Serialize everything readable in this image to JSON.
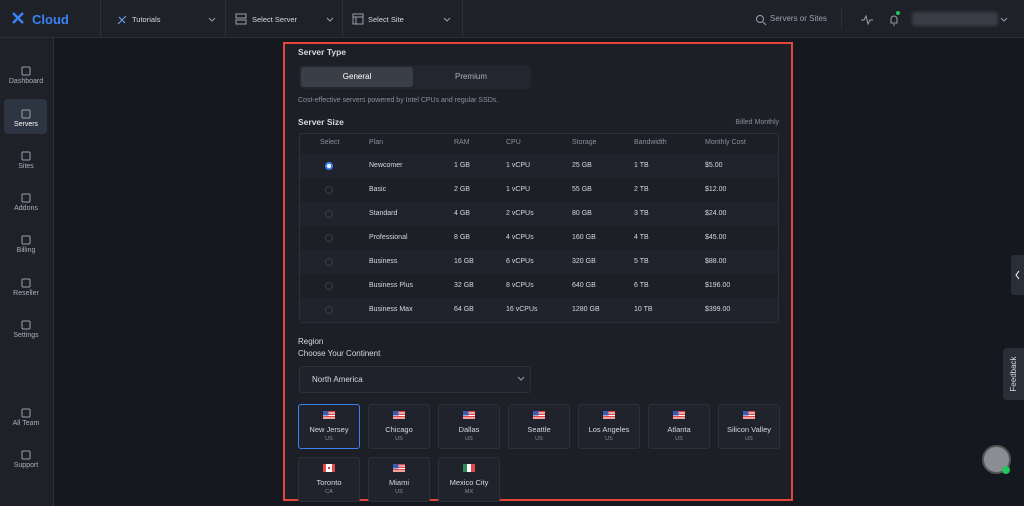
{
  "logo": {
    "text": "Cloud"
  },
  "topbar": {
    "tutorials": "Tutorials",
    "select_server": "Select Server",
    "select_site": "Select Site",
    "search": "Servers or Sites"
  },
  "sidebar": [
    "Dashboard",
    "Servers",
    "Sites",
    "Addons",
    "Billing",
    "Reseller",
    "Settings",
    "All Team",
    "Support"
  ],
  "server_type": {
    "title": "Server Type",
    "tabs": [
      "General",
      "Premium"
    ],
    "description": "Cost-effective servers powered by Intel CPUs and regular SSDs."
  },
  "server_size": {
    "title": "Server Size",
    "billing": "Billed Monthly",
    "headers": [
      "Select",
      "Plan",
      "RAM",
      "CPU",
      "Storage",
      "Bandwidth",
      "Monthly Cost"
    ],
    "rows": [
      [
        "Newcomer",
        "1 GB",
        "1 vCPU",
        "25 GB",
        "1 TB",
        "$5.00"
      ],
      [
        "Basic",
        "2 GB",
        "1 vCPU",
        "55 GB",
        "2 TB",
        "$12.00"
      ],
      [
        "Standard",
        "4 GB",
        "2 vCPUs",
        "80 GB",
        "3 TB",
        "$24.00"
      ],
      [
        "Professional",
        "8 GB",
        "4 vCPUs",
        "160 GB",
        "4 TB",
        "$45.00"
      ],
      [
        "Business",
        "16 GB",
        "6 vCPUs",
        "320 GB",
        "5 TB",
        "$88.00"
      ],
      [
        "Business Plus",
        "32 GB",
        "8 vCPUs",
        "640 GB",
        "6 TB",
        "$196.00"
      ],
      [
        "Business Max",
        "64 GB",
        "16 vCPUs",
        "1280 GB",
        "10 TB",
        "$399.00"
      ]
    ]
  },
  "region": {
    "title": "Region",
    "subtitle": "Choose Your Continent",
    "continent": "North America",
    "locations": [
      {
        "name": "New Jersey",
        "country": "US"
      },
      {
        "name": "Chicago",
        "country": "US"
      },
      {
        "name": "Dallas",
        "country": "US"
      },
      {
        "name": "Seattle",
        "country": "US"
      },
      {
        "name": "Los Angeles",
        "country": "US"
      },
      {
        "name": "Atlanta",
        "country": "US"
      },
      {
        "name": "Silicon Valley",
        "country": "US"
      },
      {
        "name": "Toronto",
        "country": "CA"
      },
      {
        "name": "Miami",
        "country": "US"
      },
      {
        "name": "Mexico City",
        "country": "MX"
      }
    ]
  },
  "feedback": "Feedback"
}
